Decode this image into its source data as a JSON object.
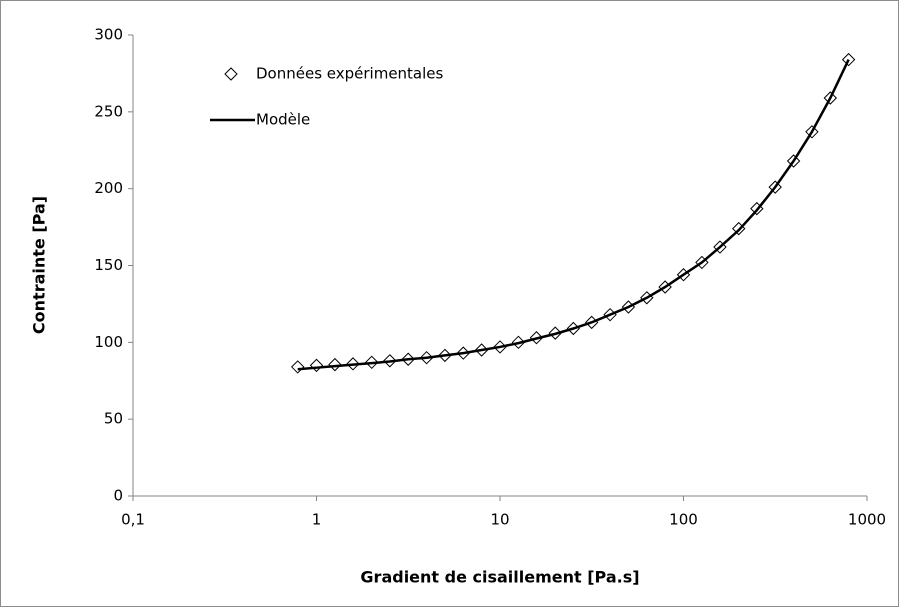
{
  "chart_data": {
    "type": "scatter",
    "x_label": "Gradient de cisaillement [Pa.s]",
    "y_label": "Contrainte [Pa]",
    "x_log": true,
    "xlim": [
      0.1,
      1000
    ],
    "xticks": [
      {
        "value": 0.1,
        "label": "0,1"
      },
      1,
      10,
      100,
      1000
    ],
    "ylim": [
      0,
      300
    ],
    "yticks": [
      0,
      50,
      100,
      150,
      200,
      250,
      300
    ],
    "series": [
      {
        "name": "Données expérimentales",
        "mode": "markers",
        "color": "#000000",
        "x": [
          0.79,
          1,
          1.26,
          1.58,
          2,
          2.51,
          3.16,
          3.98,
          5.01,
          6.31,
          7.94,
          10,
          12.6,
          15.8,
          20,
          25.1,
          31.6,
          39.8,
          50.1,
          63.1,
          79.4,
          100,
          126,
          158,
          200,
          251,
          316,
          398,
          501,
          631,
          794
        ],
        "values": [
          84,
          85,
          85.5,
          86,
          87,
          88,
          89,
          90,
          91.5,
          93,
          95,
          97,
          100,
          103,
          106,
          109,
          113,
          118,
          123,
          129,
          136,
          144,
          152,
          162,
          174,
          187,
          201,
          218,
          237,
          259,
          284
        ]
      },
      {
        "name": "Modèle",
        "mode": "line",
        "color": "#000000",
        "x": [
          0.79,
          1,
          1.26,
          1.58,
          2,
          2.51,
          3.16,
          3.98,
          5.01,
          6.31,
          7.94,
          10,
          12.6,
          15.8,
          20,
          25.1,
          31.6,
          39.8,
          50.1,
          63.1,
          79.4,
          100,
          126,
          158,
          200,
          251,
          316,
          398,
          501,
          631,
          794
        ],
        "values": [
          82.5,
          83.5,
          84.5,
          85.5,
          86.5,
          87.5,
          89,
          90,
          91.5,
          93,
          95,
          97,
          99.5,
          102.5,
          105.5,
          109,
          113,
          118,
          123,
          129,
          136,
          144,
          152,
          162,
          173,
          186,
          201,
          218,
          237,
          259,
          284
        ]
      }
    ]
  }
}
